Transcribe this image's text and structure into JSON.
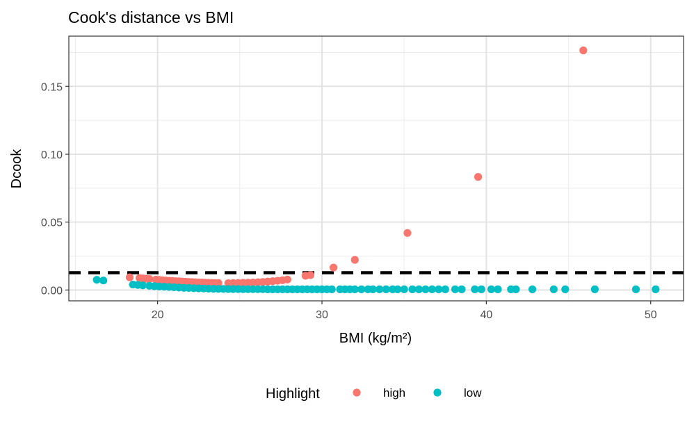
{
  "chart_data": {
    "type": "scatter",
    "title": "Cook's distance vs BMI",
    "xlabel": "BMI (kg/m²)",
    "ylabel": "Dcook",
    "xlim": [
      14.6,
      52.0
    ],
    "ylim": [
      -0.008,
      0.187
    ],
    "x_ticks": [
      20,
      30,
      40,
      50
    ],
    "y_ticks": [
      0.0,
      0.05,
      0.1,
      0.15
    ],
    "y_tick_labels": [
      "0.00",
      "0.05",
      "0.10",
      "0.15"
    ],
    "grid": true,
    "threshold_line": {
      "y": 0.0127,
      "style": "dashed",
      "color": "#000000"
    },
    "legend": {
      "title": "Highlight",
      "position": "bottom",
      "entries": [
        {
          "label": "high",
          "color": "#F8766D"
        },
        {
          "label": "low",
          "color": "#00BFC4"
        }
      ]
    },
    "series": [
      {
        "name": "high",
        "color": "#F8766D",
        "points": [
          [
            18.3,
            0.0093
          ],
          [
            18.9,
            0.0088
          ],
          [
            19.1,
            0.0085
          ],
          [
            19.3,
            0.0083
          ],
          [
            19.5,
            0.0081
          ],
          [
            19.9,
            0.0076
          ],
          [
            20.1,
            0.0074
          ],
          [
            20.3,
            0.0072
          ],
          [
            20.5,
            0.007
          ],
          [
            20.7,
            0.0068
          ],
          [
            20.9,
            0.0067
          ],
          [
            21.1,
            0.0065
          ],
          [
            21.3,
            0.0064
          ],
          [
            21.5,
            0.0062
          ],
          [
            21.7,
            0.0061
          ],
          [
            21.9,
            0.0059
          ],
          [
            22.1,
            0.0058
          ],
          [
            22.3,
            0.0057
          ],
          [
            22.5,
            0.0056
          ],
          [
            22.7,
            0.0055
          ],
          [
            22.9,
            0.0054
          ],
          [
            23.1,
            0.0053
          ],
          [
            23.3,
            0.0052
          ],
          [
            23.5,
            0.0051
          ],
          [
            23.7,
            0.0051
          ],
          [
            24.3,
            0.005
          ],
          [
            24.6,
            0.0051
          ],
          [
            24.9,
            0.0052
          ],
          [
            25.2,
            0.0053
          ],
          [
            25.5,
            0.0054
          ],
          [
            25.8,
            0.0055
          ],
          [
            26.1,
            0.0057
          ],
          [
            26.4,
            0.0059
          ],
          [
            26.7,
            0.0062
          ],
          [
            27.0,
            0.0065
          ],
          [
            27.3,
            0.0068
          ],
          [
            27.6,
            0.0072
          ],
          [
            27.9,
            0.0077
          ],
          [
            29.0,
            0.0105
          ],
          [
            29.3,
            0.011
          ],
          [
            30.7,
            0.0165
          ],
          [
            32.0,
            0.0222
          ],
          [
            35.2,
            0.042
          ],
          [
            39.5,
            0.0833
          ],
          [
            45.9,
            0.1765
          ]
        ]
      },
      {
        "name": "low",
        "color": "#00BFC4",
        "points": [
          [
            16.3,
            0.0075
          ],
          [
            16.7,
            0.007
          ],
          [
            18.5,
            0.004
          ],
          [
            18.8,
            0.0037
          ],
          [
            19.1,
            0.0034
          ],
          [
            19.5,
            0.0031
          ],
          [
            19.8,
            0.0028
          ],
          [
            20.1,
            0.0026
          ],
          [
            20.4,
            0.0024
          ],
          [
            20.7,
            0.0022
          ],
          [
            21.0,
            0.002
          ],
          [
            21.3,
            0.0018
          ],
          [
            21.6,
            0.0016
          ],
          [
            21.9,
            0.0015
          ],
          [
            22.2,
            0.0013
          ],
          [
            22.5,
            0.0012
          ],
          [
            22.8,
            0.0011
          ],
          [
            23.1,
            0.001
          ],
          [
            23.4,
            0.0009
          ],
          [
            23.7,
            0.0008
          ],
          [
            24.0,
            0.0008
          ],
          [
            24.3,
            0.0007
          ],
          [
            24.6,
            0.0007
          ],
          [
            24.9,
            0.0007
          ],
          [
            25.2,
            0.0006
          ],
          [
            25.5,
            0.0006
          ],
          [
            25.8,
            0.0006
          ],
          [
            26.1,
            0.0006
          ],
          [
            26.4,
            0.0006
          ],
          [
            26.7,
            0.0005
          ],
          [
            27.0,
            0.0005
          ],
          [
            27.3,
            0.0005
          ],
          [
            27.6,
            0.0005
          ],
          [
            27.9,
            0.0005
          ],
          [
            28.2,
            0.0005
          ],
          [
            28.5,
            0.0005
          ],
          [
            28.8,
            0.0005
          ],
          [
            29.1,
            0.0005
          ],
          [
            29.4,
            0.0005
          ],
          [
            29.7,
            0.0005
          ],
          [
            30.0,
            0.0005
          ],
          [
            30.3,
            0.0005
          ],
          [
            30.6,
            0.0005
          ],
          [
            31.1,
            0.0005
          ],
          [
            31.4,
            0.0005
          ],
          [
            31.7,
            0.0005
          ],
          [
            32.0,
            0.0005
          ],
          [
            32.4,
            0.0005
          ],
          [
            32.8,
            0.0005
          ],
          [
            33.1,
            0.0005
          ],
          [
            33.5,
            0.0005
          ],
          [
            33.9,
            0.0005
          ],
          [
            34.3,
            0.0005
          ],
          [
            34.6,
            0.0005
          ],
          [
            35.0,
            0.0005
          ],
          [
            35.5,
            0.0005
          ],
          [
            35.9,
            0.0005
          ],
          [
            36.3,
            0.0005
          ],
          [
            36.7,
            0.0005
          ],
          [
            37.1,
            0.0005
          ],
          [
            37.5,
            0.0005
          ],
          [
            38.1,
            0.0005
          ],
          [
            38.5,
            0.0005
          ],
          [
            39.3,
            0.0005
          ],
          [
            39.7,
            0.0005
          ],
          [
            40.3,
            0.0005
          ],
          [
            40.7,
            0.0005
          ],
          [
            41.5,
            0.0005
          ],
          [
            41.8,
            0.0005
          ],
          [
            42.8,
            0.0005
          ],
          [
            44.1,
            0.0005
          ],
          [
            44.8,
            0.0005
          ],
          [
            46.6,
            0.0005
          ],
          [
            49.1,
            0.0005
          ],
          [
            50.3,
            0.0005
          ]
        ]
      }
    ]
  }
}
